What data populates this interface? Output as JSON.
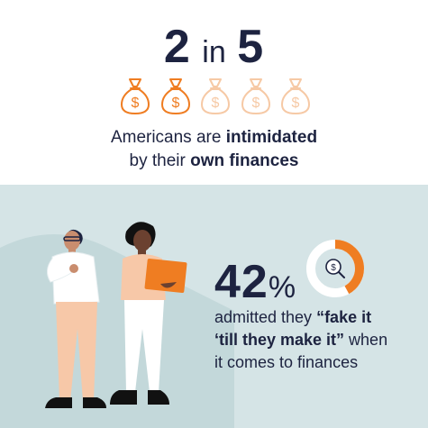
{
  "headline": {
    "number_a": "2",
    "connector": "in",
    "number_b": "5"
  },
  "money_bags": {
    "total": 5,
    "highlighted": 2,
    "icon": "money-bag-icon",
    "highlight_color": "#ef7d22",
    "faded_color": "#f6c9a5"
  },
  "subtitle": {
    "line1_plain": "Americans are ",
    "line1_bold": "intimidated",
    "line2_plain": "by their ",
    "line2_bold": "own finances"
  },
  "stat": {
    "value": "42",
    "unit": "%",
    "fraction": 0.42,
    "line1_plain": "admitted they ",
    "line1_bold": "“fake it",
    "line2_bold": "‘till they make it”",
    "line2_plain": " when",
    "line3_plain": "it comes to finances"
  },
  "colors": {
    "navy": "#1d2340",
    "orange": "#ef7d22",
    "teal_bg": "#d5e4e6"
  }
}
